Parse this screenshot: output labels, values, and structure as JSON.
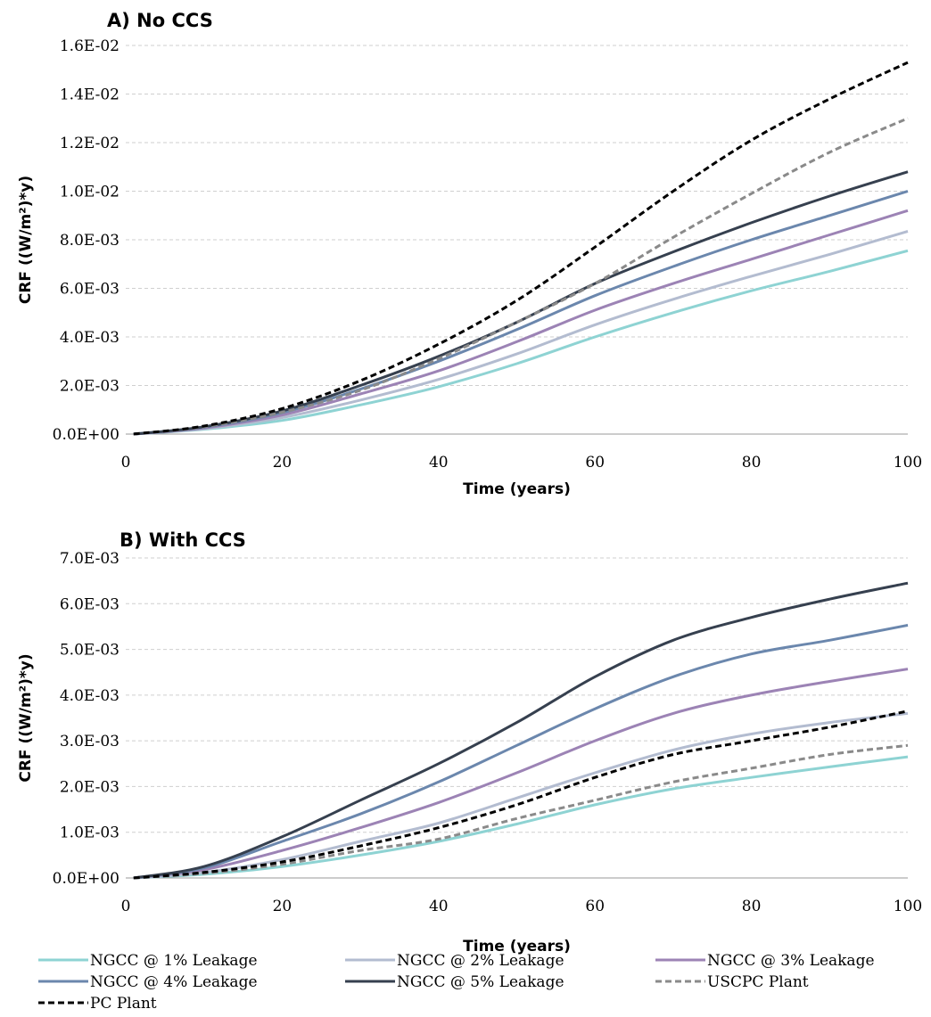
{
  "chart_data": [
    {
      "type": "line",
      "title": "A) No CCS",
      "xlabel": "Time (years)",
      "ylabel": "CRF ((W/m²)*y)",
      "xlim": [
        0,
        100
      ],
      "ylim": [
        0,
        0.016
      ],
      "x_ticks": [
        "0",
        "20",
        "40",
        "60",
        "80",
        "100"
      ],
      "y_ticks": [
        "0.0E+00",
        "2.0E-03",
        "4.0E-03",
        "6.0E-03",
        "8.0E-03",
        "1.0E-02",
        "1.2E-02",
        "1.4E-02",
        "1.6E-02"
      ],
      "grid": true,
      "x": [
        1,
        10,
        20,
        30,
        40,
        50,
        60,
        70,
        80,
        90,
        100
      ],
      "series": [
        {
          "name": "NGCC @ 1% Leakage",
          "color": "#8ed3d3",
          "dash": false,
          "values": [
            0,
            0.0002,
            0.00056,
            0.0012,
            0.00195,
            0.0029,
            0.004,
            0.005,
            0.0059,
            0.0067,
            0.00755
          ]
        },
        {
          "name": "NGCC @ 2% Leakage",
          "color": "#b3bcd0",
          "dash": false,
          "values": [
            0,
            0.00022,
            0.00068,
            0.0014,
            0.00225,
            0.0033,
            0.0045,
            0.00555,
            0.0065,
            0.0074,
            0.00835
          ]
        },
        {
          "name": "NGCC @ 3% Leakage",
          "color": "#9c83b5",
          "dash": false,
          "values": [
            0,
            0.00025,
            0.00078,
            0.00165,
            0.0026,
            0.0038,
            0.0051,
            0.0062,
            0.0072,
            0.0082,
            0.0092
          ]
        },
        {
          "name": "NGCC @ 4% Leakage",
          "color": "#6b87ad",
          "dash": false,
          "values": [
            0,
            0.00028,
            0.00088,
            0.00185,
            0.003,
            0.0043,
            0.0057,
            0.0069,
            0.008,
            0.009,
            0.01
          ]
        },
        {
          "name": "NGCC @ 5% Leakage",
          "color": "#36404f",
          "dash": false,
          "values": [
            0,
            0.0003,
            0.00095,
            0.002,
            0.0032,
            0.0046,
            0.0062,
            0.0075,
            0.0087,
            0.0098,
            0.0108
          ]
        },
        {
          "name": "USCPC Plant",
          "color": "#8a8a8a",
          "dash": true,
          "values": [
            0,
            0.0003,
            0.0009,
            0.0018,
            0.0031,
            0.0046,
            0.0062,
            0.0081,
            0.0099,
            0.0116,
            0.013
          ]
        },
        {
          "name": "PC Plant",
          "color": "#000000",
          "dash": true,
          "values": [
            0,
            0.00033,
            0.00105,
            0.0022,
            0.0037,
            0.0055,
            0.0077,
            0.01,
            0.0121,
            0.0138,
            0.0153
          ]
        }
      ]
    },
    {
      "type": "line",
      "title": "B) With CCS",
      "xlabel": "Time (years)",
      "ylabel": "CRF ((W/m²)*y)",
      "xlim": [
        0,
        100
      ],
      "ylim": [
        0,
        0.007
      ],
      "x_ticks": [
        "0",
        "20",
        "40",
        "60",
        "80",
        "100"
      ],
      "y_ticks": [
        "0.0E+00",
        "1.0E-03",
        "2.0E-03",
        "3.0E-03",
        "4.0E-03",
        "5.0E-03",
        "6.0E-03",
        "7.0E-03"
      ],
      "grid": true,
      "x": [
        1,
        10,
        20,
        30,
        40,
        50,
        60,
        70,
        80,
        90,
        100
      ],
      "series": [
        {
          "name": "NGCC @ 1% Leakage",
          "color": "#8ed3d3",
          "dash": false,
          "values": [
            0,
            8e-05,
            0.00025,
            0.0005,
            0.0008,
            0.00118,
            0.0016,
            0.00195,
            0.0022,
            0.00243,
            0.00265
          ]
        },
        {
          "name": "NGCC @ 2% Leakage",
          "color": "#b3bcd0",
          "dash": false,
          "values": [
            0,
            0.00012,
            0.0004,
            0.0008,
            0.0012,
            0.00175,
            0.0023,
            0.0028,
            0.00315,
            0.0034,
            0.0036
          ]
        },
        {
          "name": "NGCC @ 3% Leakage",
          "color": "#9c83b5",
          "dash": false,
          "values": [
            0,
            0.00018,
            0.0006,
            0.0011,
            0.00165,
            0.0023,
            0.003,
            0.0036,
            0.004,
            0.0043,
            0.00457
          ]
        },
        {
          "name": "NGCC @ 4% Leakage",
          "color": "#6b87ad",
          "dash": false,
          "values": [
            0,
            0.00022,
            0.0008,
            0.0014,
            0.0021,
            0.0029,
            0.0037,
            0.0044,
            0.0049,
            0.0052,
            0.00553
          ]
        },
        {
          "name": "NGCC @ 5% Leakage",
          "color": "#36404f",
          "dash": false,
          "values": [
            0,
            0.00025,
            0.0009,
            0.0017,
            0.0025,
            0.0034,
            0.0044,
            0.0052,
            0.0057,
            0.0061,
            0.00645
          ]
        },
        {
          "name": "USCPC Plant",
          "color": "#8a8a8a",
          "dash": true,
          "values": [
            0,
            0.0001,
            0.0003,
            0.0006,
            0.00085,
            0.0013,
            0.0017,
            0.0021,
            0.0024,
            0.0027,
            0.0029
          ]
        },
        {
          "name": "PC Plant",
          "color": "#000000",
          "dash": true,
          "values": [
            0,
            0.00012,
            0.00035,
            0.0007,
            0.0011,
            0.0016,
            0.0022,
            0.0027,
            0.003,
            0.0033,
            0.00365
          ]
        }
      ]
    }
  ],
  "legend": {
    "placement": "bottom",
    "items": [
      {
        "label": "NGCC @ 1% Leakage",
        "color": "#8ed3d3",
        "dash": false
      },
      {
        "label": "NGCC @ 2% Leakage",
        "color": "#b3bcd0",
        "dash": false
      },
      {
        "label": "NGCC @ 3% Leakage",
        "color": "#9c83b5",
        "dash": false
      },
      {
        "label": "NGCC @ 4% Leakage",
        "color": "#6b87ad",
        "dash": false
      },
      {
        "label": "NGCC @ 5% Leakage",
        "color": "#36404f",
        "dash": false
      },
      {
        "label": "USCPC Plant",
        "color": "#8a8a8a",
        "dash": true
      },
      {
        "label": "PC Plant",
        "color": "#000000",
        "dash": true
      }
    ]
  }
}
